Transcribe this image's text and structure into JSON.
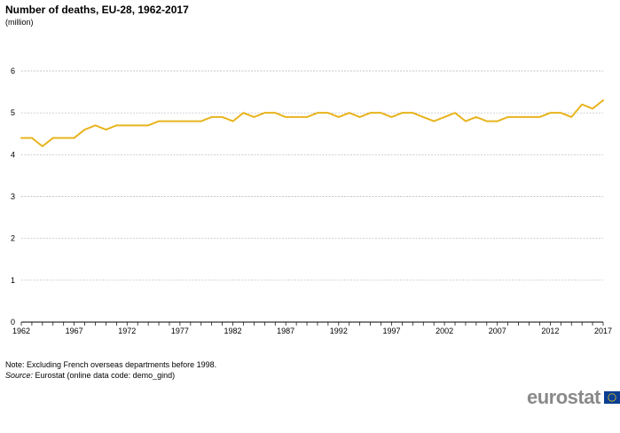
{
  "title": "Number of deaths, EU-28, 1962-2017",
  "subtitle": "(million)",
  "note": "Note: Excluding French overseas departments before 1998.",
  "source_label": "Source:",
  "source_text": " Eurostat (online data code: demo_gind)",
  "logo_text": "eurostat",
  "colors": {
    "line": "#e8b41e",
    "grid": "#b4b4b4",
    "axis": "#000000",
    "flag": "#0b3e94",
    "stars": "#f5d10a"
  },
  "chart_data": {
    "type": "line",
    "title": "Number of deaths, EU-28, 1962-2017",
    "subtitle": "(million)",
    "xlabel": "",
    "ylabel": "",
    "x": [
      1962,
      1963,
      1964,
      1965,
      1966,
      1967,
      1968,
      1969,
      1970,
      1971,
      1972,
      1973,
      1974,
      1975,
      1976,
      1977,
      1978,
      1979,
      1980,
      1981,
      1982,
      1983,
      1984,
      1985,
      1986,
      1987,
      1988,
      1989,
      1990,
      1991,
      1992,
      1993,
      1994,
      1995,
      1996,
      1997,
      1998,
      1999,
      2000,
      2001,
      2002,
      2003,
      2004,
      2005,
      2006,
      2007,
      2008,
      2009,
      2010,
      2011,
      2012,
      2013,
      2014,
      2015,
      2016,
      2017
    ],
    "series": [
      {
        "values": [
          4.4,
          4.4,
          4.2,
          4.4,
          4.4,
          4.4,
          4.6,
          4.7,
          4.6,
          4.7,
          4.7,
          4.7,
          4.7,
          4.8,
          4.8,
          4.8,
          4.8,
          4.8,
          4.9,
          4.9,
          4.8,
          5.0,
          4.9,
          5.0,
          5.0,
          4.9,
          4.9,
          4.9,
          5.0,
          5.0,
          4.9,
          5.0,
          4.9,
          5.0,
          5.0,
          4.9,
          5.0,
          5.0,
          4.9,
          4.8,
          4.9,
          5.0,
          4.8,
          4.9,
          4.8,
          4.8,
          4.9,
          4.9,
          4.9,
          4.9,
          5.0,
          5.0,
          4.9,
          5.2,
          5.1,
          5.3
        ]
      }
    ],
    "x_ticks": [
      "1962",
      "1967",
      "1972",
      "1977",
      "1982",
      "1987",
      "1992",
      "1997",
      "2002",
      "2007",
      "2012",
      "2017"
    ],
    "y_ticks": [
      "0",
      "1",
      "2",
      "3",
      "4",
      "5",
      "6"
    ],
    "xlim": [
      1962,
      2017
    ],
    "ylim": [
      0,
      6
    ],
    "grid": "horizontal dashed",
    "legend": "none"
  }
}
